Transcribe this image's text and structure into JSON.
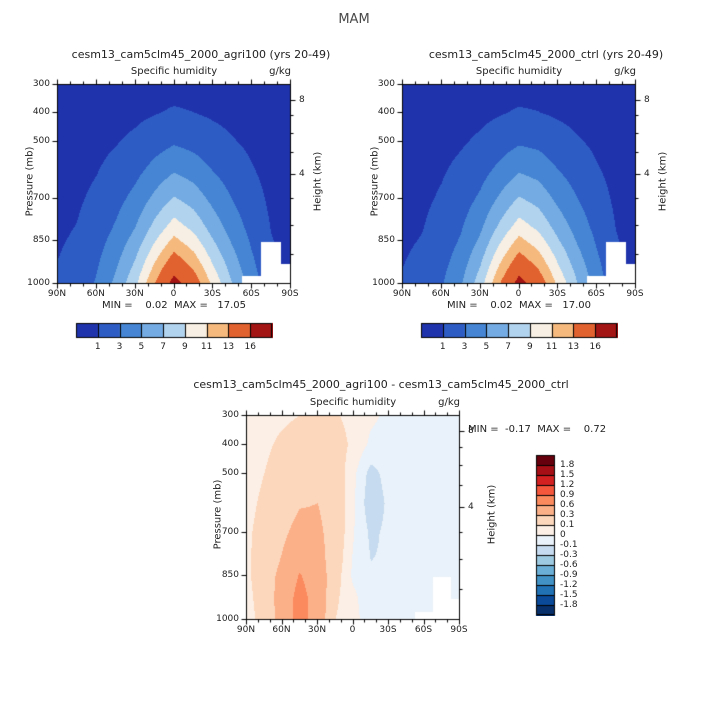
{
  "title": "MAM",
  "axes": {
    "x_ticks": [
      "90N",
      "60N",
      "30N",
      "0",
      "30S",
      "60S",
      "90S"
    ],
    "x_tick_lats": [
      90,
      60,
      30,
      0,
      -30,
      -60,
      -90
    ],
    "y_label": "Pressure (mb)",
    "y_ticks": [
      300,
      400,
      500,
      700,
      850,
      1000
    ],
    "right_label": "Height (km)",
    "right_ticks": [
      8,
      4
    ]
  },
  "legend_q": {
    "labels": [
      "1",
      "3",
      "5",
      "7",
      "9",
      "11",
      "13",
      "16"
    ]
  },
  "legend_diff": {
    "labels": [
      "1.8",
      "1.5",
      "1.2",
      "0.9",
      "0.6",
      "0.3",
      "0.1",
      "0",
      "-0.1",
      "-0.3",
      "-0.6",
      "-0.9",
      "-1.2",
      "-1.5",
      "-1.8"
    ]
  },
  "surface_mask": {
    "lats": [
      90,
      75,
      60,
      45,
      30,
      15,
      0,
      -15,
      -30,
      -45,
      -60,
      -75,
      -90
    ],
    "pressures": [
      1002,
      1002,
      1002,
      1002,
      1002,
      1002,
      1002,
      1002,
      1002,
      1002,
      975,
      855,
      930
    ]
  },
  "chart_data": [
    {
      "type": "contour",
      "title": "cesm13_cam5clm45_2000_agri100 (yrs 20-49)",
      "subtitle": "Specific humidity",
      "units": "g/kg",
      "stats": "MIN =    0.02  MAX =   17.05",
      "min": 0.02,
      "max": 17.05,
      "lat_range": [
        90,
        -90
      ],
      "pressure_range": [
        300,
        1000
      ],
      "levels": [
        1,
        3,
        5,
        7,
        9,
        11,
        13,
        16
      ],
      "colors": [
        "#1f33ad",
        "#2e5cc5",
        "#4585d3",
        "#74abe2",
        "#b1d3ee",
        "#f7efe3",
        "#f5b97e",
        "#e2622f",
        "#a31414"
      ],
      "lats": [
        90,
        75,
        60,
        45,
        30,
        15,
        0,
        -15,
        -30,
        -45,
        -60,
        -75,
        -90
      ],
      "pressures": [
        300,
        400,
        500,
        600,
        700,
        800,
        850,
        925,
        1000
      ],
      "values": [
        [
          0.03,
          0.05,
          0.08,
          0.14,
          0.21,
          0.33,
          0.43,
          0.36,
          0.26,
          0.18,
          0.1,
          0.04,
          0.02
        ],
        [
          0.08,
          0.13,
          0.22,
          0.39,
          0.6,
          0.91,
          1.19,
          1.02,
          0.74,
          0.49,
          0.28,
          0.11,
          0.04
        ],
        [
          0.19,
          0.29,
          0.51,
          0.88,
          1.36,
          2.08,
          2.73,
          2.32,
          1.68,
          1.12,
          0.64,
          0.26,
          0.1
        ],
        [
          0.34,
          0.5,
          0.9,
          1.54,
          2.38,
          3.64,
          4.77,
          4.06,
          2.94,
          1.96,
          1.12,
          0.45,
          0.17
        ],
        [
          0.5,
          0.76,
          1.34,
          2.31,
          3.57,
          5.46,
          7.16,
          6.09,
          4.41,
          2.94,
          1.68,
          0.67,
          0.25
        ],
        [
          0.7,
          1.04,
          1.86,
          3.19,
          4.93,
          7.54,
          9.89,
          8.41,
          6.09,
          4.06,
          2.32,
          0.93,
          0.35
        ],
        [
          0.82,
          1.22,
          2.18,
          3.74,
          5.78,
          8.84,
          11.59,
          9.86,
          7.14,
          4.76,
          2.72,
          1.09,
          0.41
        ],
        [
          1.01,
          1.51,
          2.69,
          4.62,
          7.14,
          10.92,
          14.32,
          12.18,
          8.82,
          5.88,
          3.36,
          1.34,
          0.5
        ],
        [
          1.2,
          1.8,
          3.2,
          5.5,
          8.5,
          13.0,
          17.05,
          14.5,
          10.5,
          7.0,
          4.0,
          1.6,
          0.6
        ]
      ]
    },
    {
      "type": "contour",
      "title": "cesm13_cam5clm45_2000_ctrl (yrs 20-49)",
      "subtitle": "Specific humidity",
      "units": "g/kg",
      "stats": "MIN =    0.02  MAX =   17.00",
      "min": 0.02,
      "max": 17.0,
      "lat_range": [
        90,
        -90
      ],
      "pressure_range": [
        300,
        1000
      ],
      "levels": [
        1,
        3,
        5,
        7,
        9,
        11,
        13,
        16
      ],
      "colors": [
        "#1f33ad",
        "#2e5cc5",
        "#4585d3",
        "#74abe2",
        "#b1d3ee",
        "#f7efe3",
        "#f5b97e",
        "#e2622f",
        "#a31414"
      ],
      "lats": [
        90,
        75,
        60,
        45,
        30,
        15,
        0,
        -15,
        -30,
        -45,
        -60,
        -75,
        -90
      ],
      "pressures": [
        300,
        400,
        500,
        600,
        700,
        800,
        850,
        925,
        1000
      ],
      "values": [
        [
          0.03,
          0.05,
          0.08,
          0.13,
          0.2,
          0.32,
          0.42,
          0.36,
          0.26,
          0.18,
          0.1,
          0.04,
          0.02
        ],
        [
          0.08,
          0.12,
          0.21,
          0.36,
          0.55,
          0.88,
          1.17,
          1.04,
          0.76,
          0.5,
          0.28,
          0.11,
          0.04
        ],
        [
          0.18,
          0.27,
          0.47,
          0.8,
          1.28,
          2.0,
          2.7,
          2.45,
          1.74,
          1.16,
          0.66,
          0.27,
          0.1
        ],
        [
          0.32,
          0.46,
          0.82,
          1.38,
          2.2,
          3.48,
          4.75,
          4.22,
          3.02,
          2.02,
          1.15,
          0.46,
          0.17
        ],
        [
          0.46,
          0.68,
          1.18,
          2.05,
          3.3,
          5.26,
          7.15,
          6.21,
          4.49,
          3.01,
          1.72,
          0.69,
          0.25
        ],
        [
          0.64,
          0.92,
          1.62,
          2.78,
          4.58,
          7.36,
          9.9,
          8.51,
          6.18,
          4.14,
          2.37,
          0.95,
          0.35
        ],
        [
          0.76,
          1.08,
          1.86,
          3.2,
          5.35,
          8.68,
          11.61,
          9.95,
          7.23,
          4.83,
          2.77,
          1.11,
          0.41
        ],
        [
          0.94,
          1.37,
          2.32,
          3.98,
          6.7,
          10.8,
          14.29,
          12.26,
          8.91,
          5.95,
          3.41,
          1.36,
          0.5
        ],
        [
          1.14,
          1.66,
          2.8,
          4.78,
          8.05,
          12.9,
          17.0,
          14.58,
          10.6,
          7.08,
          4.05,
          1.62,
          0.6
        ]
      ]
    },
    {
      "type": "contour",
      "title": "cesm13_cam5clm45_2000_agri100 - cesm13_cam5clm45_2000_ctrl",
      "subtitle": "Specific humidity",
      "units": "g/kg",
      "stats": "MIN =  -0.17  MAX =    0.72",
      "min": -0.17,
      "max": 0.72,
      "lat_range": [
        90,
        -90
      ],
      "pressure_range": [
        300,
        1000
      ],
      "levels": [
        -1.8,
        -1.5,
        -1.2,
        -0.9,
        -0.6,
        -0.3,
        -0.1,
        0,
        0.1,
        0.3,
        0.6,
        0.9,
        1.2,
        1.5,
        1.8
      ],
      "colors": [
        "#08306b",
        "#0a4a99",
        "#2171b5",
        "#4292c6",
        "#6baed6",
        "#9ecae1",
        "#c6dbef",
        "#e9f2fa",
        "#fcefe6",
        "#fdd7bc",
        "#fcb088",
        "#fb8a5e",
        "#f4573c",
        "#d32020",
        "#a50f15",
        "#67000d"
      ],
      "lats": [
        90,
        75,
        60,
        45,
        30,
        15,
        0,
        -15,
        -30,
        -45,
        -60,
        -75,
        -90
      ],
      "pressures": [
        300,
        400,
        500,
        600,
        700,
        800,
        850,
        925,
        1000
      ],
      "values": [
        [
          0.05,
          0.06,
          0.08,
          0.1,
          0.12,
          0.11,
          0.07,
          0.02,
          -0.02,
          -0.03,
          -0.02,
          -0.01,
          0.0
        ],
        [
          0.06,
          0.08,
          0.12,
          0.15,
          0.18,
          0.15,
          0.08,
          -0.02,
          -0.04,
          -0.05,
          -0.03,
          -0.01,
          0.0
        ],
        [
          0.06,
          0.1,
          0.15,
          0.22,
          0.25,
          0.18,
          0.03,
          -0.14,
          -0.06,
          -0.06,
          -0.04,
          -0.02,
          0.0
        ],
        [
          0.07,
          0.12,
          0.18,
          0.28,
          0.3,
          0.2,
          0.02,
          -0.17,
          -0.08,
          -0.07,
          -0.05,
          -0.02,
          0.0
        ],
        [
          0.08,
          0.14,
          0.25,
          0.38,
          0.35,
          0.2,
          0.01,
          -0.12,
          -0.08,
          -0.08,
          -0.05,
          -0.03,
          -0.01
        ],
        [
          0.08,
          0.16,
          0.32,
          0.52,
          0.4,
          0.18,
          -0.01,
          -0.1,
          -0.09,
          -0.08,
          -0.06,
          -0.03,
          -0.01
        ],
        [
          0.08,
          0.16,
          0.38,
          0.62,
          0.45,
          0.16,
          -0.02,
          -0.09,
          -0.09,
          -0.08,
          -0.06,
          -0.03,
          -0.01
        ],
        [
          0.07,
          0.15,
          0.42,
          0.7,
          0.48,
          0.12,
          0.03,
          -0.08,
          -0.09,
          -0.08,
          -0.06,
          -0.02,
          0.0
        ],
        [
          0.06,
          0.14,
          0.4,
          0.72,
          0.45,
          0.1,
          0.05,
          -0.08,
          -0.1,
          -0.08,
          -0.05,
          -0.02,
          0.0
        ]
      ]
    }
  ]
}
